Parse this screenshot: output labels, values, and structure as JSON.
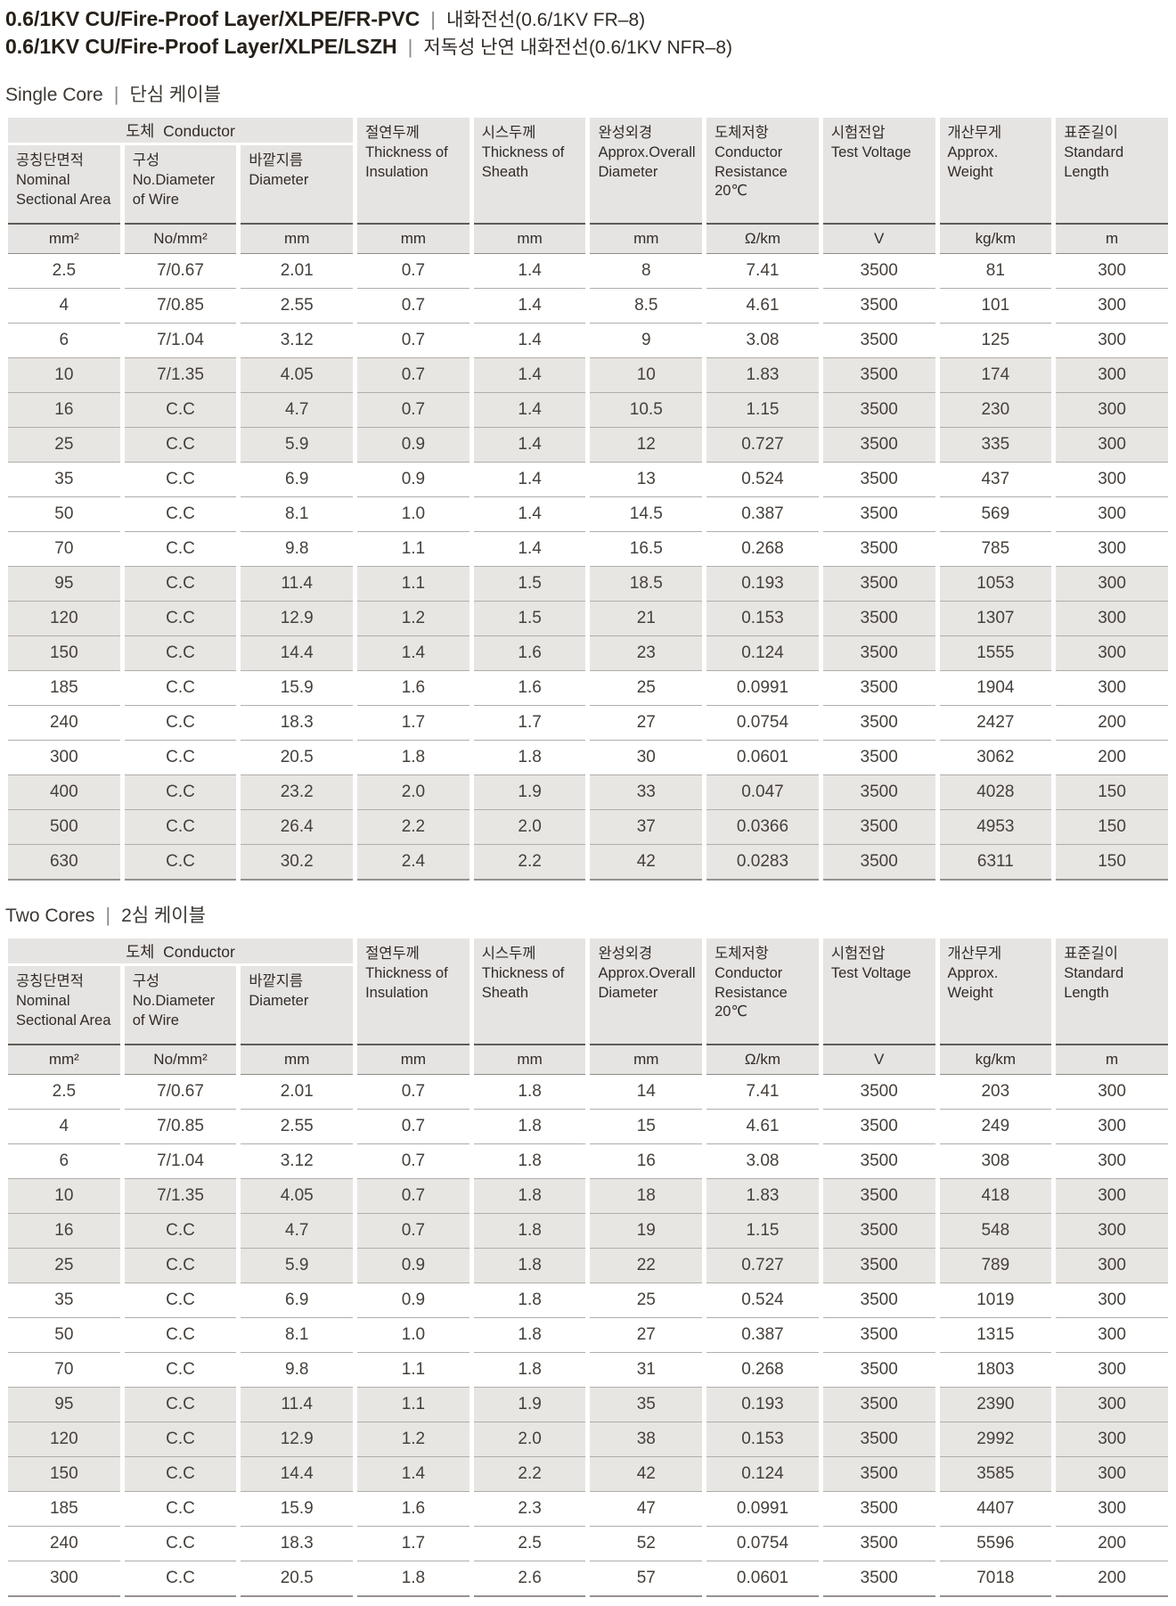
{
  "titles": [
    {
      "en": "0.6/1KV CU/Fire-Proof Layer/XLPE/FR-PVC",
      "ko": "내화전선(0.6/1KV FR–8)"
    },
    {
      "en": "0.6/1KV CU/Fire-Proof Layer/XLPE/LSZH",
      "ko": "저독성 난연 내화전선(0.6/1KV NFR–8)"
    }
  ],
  "conductor_group": "도체  Conductor",
  "columns": [
    {
      "ko": "공칭단면적",
      "en": "Nominal\nSectional Area",
      "unit": "mm²"
    },
    {
      "ko": "구성",
      "en": "No.Diameter\nof Wire",
      "unit": "No/mm²"
    },
    {
      "ko": "바깥지름",
      "en": "Diameter",
      "unit": "mm"
    },
    {
      "ko": "절연두께",
      "en": "Thickness of\nInsulation",
      "unit": "mm"
    },
    {
      "ko": "시스두께",
      "en": "Thickness of\nSheath",
      "unit": "mm"
    },
    {
      "ko": "완성외경",
      "en": "Approx.Overall\nDiameter",
      "unit": "mm"
    },
    {
      "ko": "도체저항",
      "en": "Conductor\nResistance\n20℃",
      "unit": "Ω/km"
    },
    {
      "ko": "시험전압",
      "en": "Test Voltage",
      "unit": "V"
    },
    {
      "ko": "개산무게",
      "en": "Approx.\nWeight",
      "unit": "kg/km"
    },
    {
      "ko": "표준길이",
      "en": "Standard\nLength",
      "unit": "m"
    }
  ],
  "sections": [
    {
      "title_en": "Single Core",
      "title_ko": "단심 케이블",
      "rows": [
        [
          "2.5",
          "7/0.67",
          "2.01",
          "0.7",
          "1.4",
          "8",
          "7.41",
          "3500",
          "81",
          "300"
        ],
        [
          "4",
          "7/0.85",
          "2.55",
          "0.7",
          "1.4",
          "8.5",
          "4.61",
          "3500",
          "101",
          "300"
        ],
        [
          "6",
          "7/1.04",
          "3.12",
          "0.7",
          "1.4",
          "9",
          "3.08",
          "3500",
          "125",
          "300"
        ],
        [
          "10",
          "7/1.35",
          "4.05",
          "0.7",
          "1.4",
          "10",
          "1.83",
          "3500",
          "174",
          "300"
        ],
        [
          "16",
          "C.C",
          "4.7",
          "0.7",
          "1.4",
          "10.5",
          "1.15",
          "3500",
          "230",
          "300"
        ],
        [
          "25",
          "C.C",
          "5.9",
          "0.9",
          "1.4",
          "12",
          "0.727",
          "3500",
          "335",
          "300"
        ],
        [
          "35",
          "C.C",
          "6.9",
          "0.9",
          "1.4",
          "13",
          "0.524",
          "3500",
          "437",
          "300"
        ],
        [
          "50",
          "C.C",
          "8.1",
          "1.0",
          "1.4",
          "14.5",
          "0.387",
          "3500",
          "569",
          "300"
        ],
        [
          "70",
          "C.C",
          "9.8",
          "1.1",
          "1.4",
          "16.5",
          "0.268",
          "3500",
          "785",
          "300"
        ],
        [
          "95",
          "C.C",
          "11.4",
          "1.1",
          "1.5",
          "18.5",
          "0.193",
          "3500",
          "1053",
          "300"
        ],
        [
          "120",
          "C.C",
          "12.9",
          "1.2",
          "1.5",
          "21",
          "0.153",
          "3500",
          "1307",
          "300"
        ],
        [
          "150",
          "C.C",
          "14.4",
          "1.4",
          "1.6",
          "23",
          "0.124",
          "3500",
          "1555",
          "300"
        ],
        [
          "185",
          "C.C",
          "15.9",
          "1.6",
          "1.6",
          "25",
          "0.0991",
          "3500",
          "1904",
          "300"
        ],
        [
          "240",
          "C.C",
          "18.3",
          "1.7",
          "1.7",
          "27",
          "0.0754",
          "3500",
          "2427",
          "200"
        ],
        [
          "300",
          "C.C",
          "20.5",
          "1.8",
          "1.8",
          "30",
          "0.0601",
          "3500",
          "3062",
          "200"
        ],
        [
          "400",
          "C.C",
          "23.2",
          "2.0",
          "1.9",
          "33",
          "0.047",
          "3500",
          "4028",
          "150"
        ],
        [
          "500",
          "C.C",
          "26.4",
          "2.2",
          "2.0",
          "37",
          "0.0366",
          "3500",
          "4953",
          "150"
        ],
        [
          "630",
          "C.C",
          "30.2",
          "2.4",
          "2.2",
          "42",
          "0.0283",
          "3500",
          "6311",
          "150"
        ]
      ]
    },
    {
      "title_en": "Two Cores",
      "title_ko": "2심 케이블",
      "rows": [
        [
          "2.5",
          "7/0.67",
          "2.01",
          "0.7",
          "1.8",
          "14",
          "7.41",
          "3500",
          "203",
          "300"
        ],
        [
          "4",
          "7/0.85",
          "2.55",
          "0.7",
          "1.8",
          "15",
          "4.61",
          "3500",
          "249",
          "300"
        ],
        [
          "6",
          "7/1.04",
          "3.12",
          "0.7",
          "1.8",
          "16",
          "3.08",
          "3500",
          "308",
          "300"
        ],
        [
          "10",
          "7/1.35",
          "4.05",
          "0.7",
          "1.8",
          "18",
          "1.83",
          "3500",
          "418",
          "300"
        ],
        [
          "16",
          "C.C",
          "4.7",
          "0.7",
          "1.8",
          "19",
          "1.15",
          "3500",
          "548",
          "300"
        ],
        [
          "25",
          "C.C",
          "5.9",
          "0.9",
          "1.8",
          "22",
          "0.727",
          "3500",
          "789",
          "300"
        ],
        [
          "35",
          "C.C",
          "6.9",
          "0.9",
          "1.8",
          "25",
          "0.524",
          "3500",
          "1019",
          "300"
        ],
        [
          "50",
          "C.C",
          "8.1",
          "1.0",
          "1.8",
          "27",
          "0.387",
          "3500",
          "1315",
          "300"
        ],
        [
          "70",
          "C.C",
          "9.8",
          "1.1",
          "1.8",
          "31",
          "0.268",
          "3500",
          "1803",
          "300"
        ],
        [
          "95",
          "C.C",
          "11.4",
          "1.1",
          "1.9",
          "35",
          "0.193",
          "3500",
          "2390",
          "300"
        ],
        [
          "120",
          "C.C",
          "12.9",
          "1.2",
          "2.0",
          "38",
          "0.153",
          "3500",
          "2992",
          "300"
        ],
        [
          "150",
          "C.C",
          "14.4",
          "1.4",
          "2.2",
          "42",
          "0.124",
          "3500",
          "3585",
          "300"
        ],
        [
          "185",
          "C.C",
          "15.9",
          "1.6",
          "2.3",
          "47",
          "0.0991",
          "3500",
          "4407",
          "300"
        ],
        [
          "240",
          "C.C",
          "18.3",
          "1.7",
          "2.5",
          "52",
          "0.0754",
          "3500",
          "5596",
          "200"
        ],
        [
          "300",
          "C.C",
          "20.5",
          "1.8",
          "2.6",
          "57",
          "0.0601",
          "3500",
          "7018",
          "200"
        ]
      ]
    }
  ],
  "colors": {
    "header_bg": "#e6e4e2",
    "stripe_bg": "#e8e6e3",
    "title_text": "#262019",
    "body_text": "#46403b",
    "rule_dark": "#5f5b58",
    "rule_light": "#b1adaa"
  }
}
